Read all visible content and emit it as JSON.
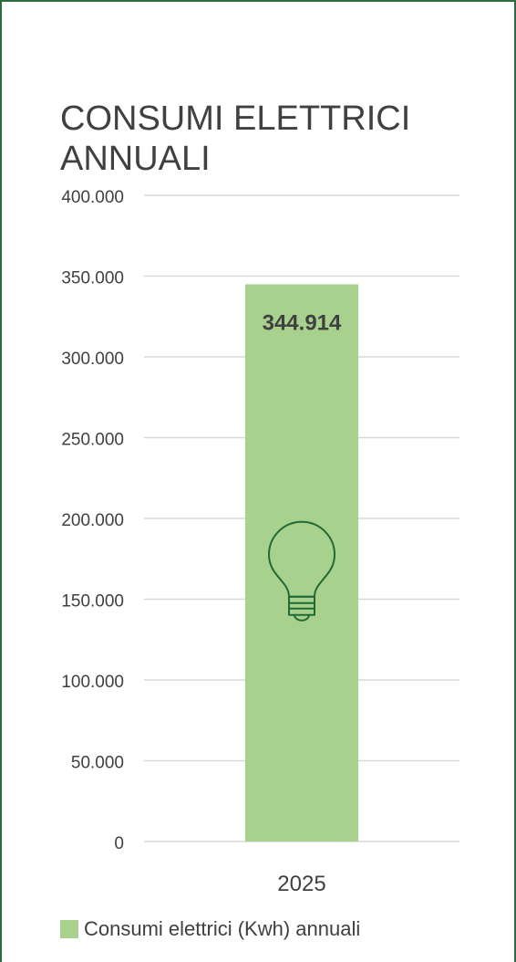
{
  "chart_data": {
    "type": "bar",
    "title": "CONSUMI ELETTRICI ANNUALI",
    "categories": [
      "2025"
    ],
    "series": [
      {
        "name": "Consumi elettrici (Kwh) annuali",
        "values": [
          344914
        ],
        "label": "344.914"
      }
    ],
    "yticks": [
      "0",
      "50.000",
      "100.000",
      "150.000",
      "200.000",
      "250.000",
      "300.000",
      "350.000",
      "400.000"
    ],
    "ytick_values": [
      0,
      50000,
      100000,
      150000,
      200000,
      250000,
      300000,
      350000,
      400000
    ],
    "ylim": [
      0,
      400000
    ],
    "grid": true,
    "legend": "bottom",
    "bar_icon": "lightbulb-icon",
    "colors": {
      "bar": "#a9d18e",
      "grid": "#d9d9d9",
      "text": "#404040",
      "icon": "#1f6b35",
      "border": "#2e6b3f"
    }
  }
}
